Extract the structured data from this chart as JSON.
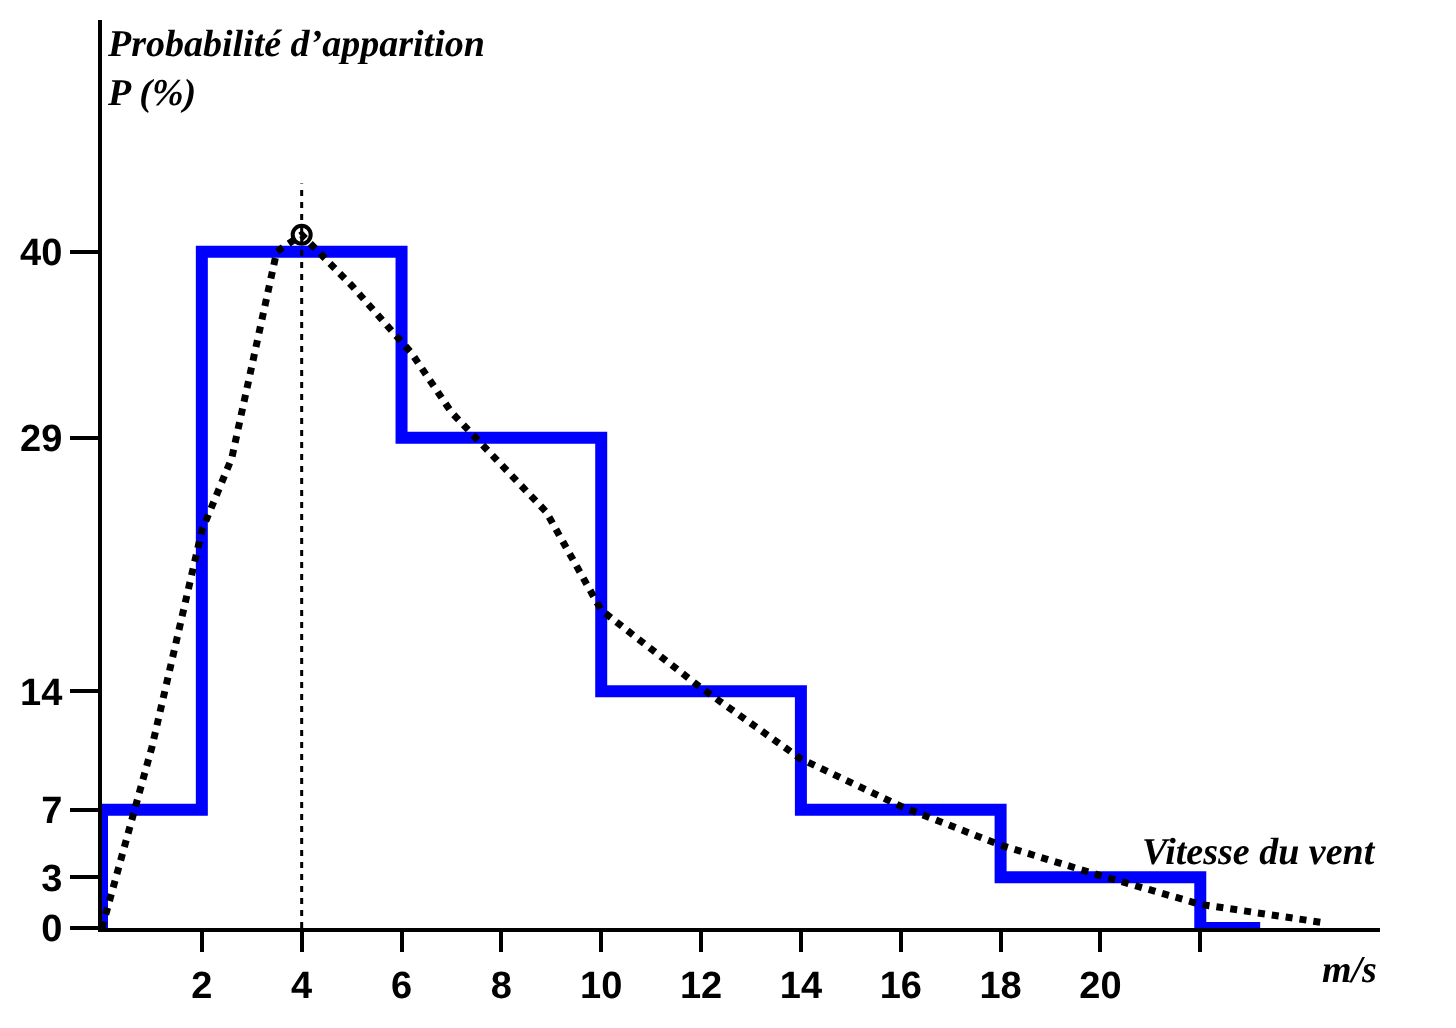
{
  "chart_data": {
    "type": "histogram",
    "ylabel": "Probabilité d’apparition\nP (%)",
    "xlabel": "Vitesse du vent",
    "annotations": [
      "m/s"
    ],
    "bins": [
      0,
      2,
      6,
      10,
      14,
      18,
      22,
      23.2
    ],
    "values": [
      7,
      40,
      29,
      14,
      7,
      3,
      0
    ],
    "color": "#0000ff",
    "series": [
      {
        "type": "line",
        "color": "#000000",
        "line_style": "dotted",
        "marker": "none",
        "x": [
          0,
          1,
          2,
          2.6,
          3.5,
          4,
          5,
          6.2,
          7,
          8.9,
          10,
          12,
          14,
          16,
          18,
          20,
          22,
          24.5
        ],
        "values": [
          0,
          10.7,
          23.5,
          27.8,
          40,
          41,
          38,
          34,
          30.5,
          24.6,
          18.8,
          14.2,
          10,
          7.2,
          4.9,
          3.1,
          1.4,
          0.3
        ]
      },
      {
        "type": "scatter",
        "color": "#000000",
        "marker": "circle",
        "x": [
          4
        ],
        "values": [
          41
        ]
      }
    ],
    "ref_lines": [
      {
        "axis": "x",
        "value": 4,
        "line_style": "dotted",
        "color": "#000000"
      }
    ],
    "xlim": [
      0,
      25.6
    ],
    "ylim": [
      0,
      53.7
    ],
    "xticks": [
      2,
      4,
      6,
      8,
      10,
      12,
      14,
      16,
      18,
      20,
      {
        "value": 22,
        "label": null
      }
    ],
    "yticks": [
      0,
      3,
      7,
      14,
      29,
      40
    ]
  }
}
